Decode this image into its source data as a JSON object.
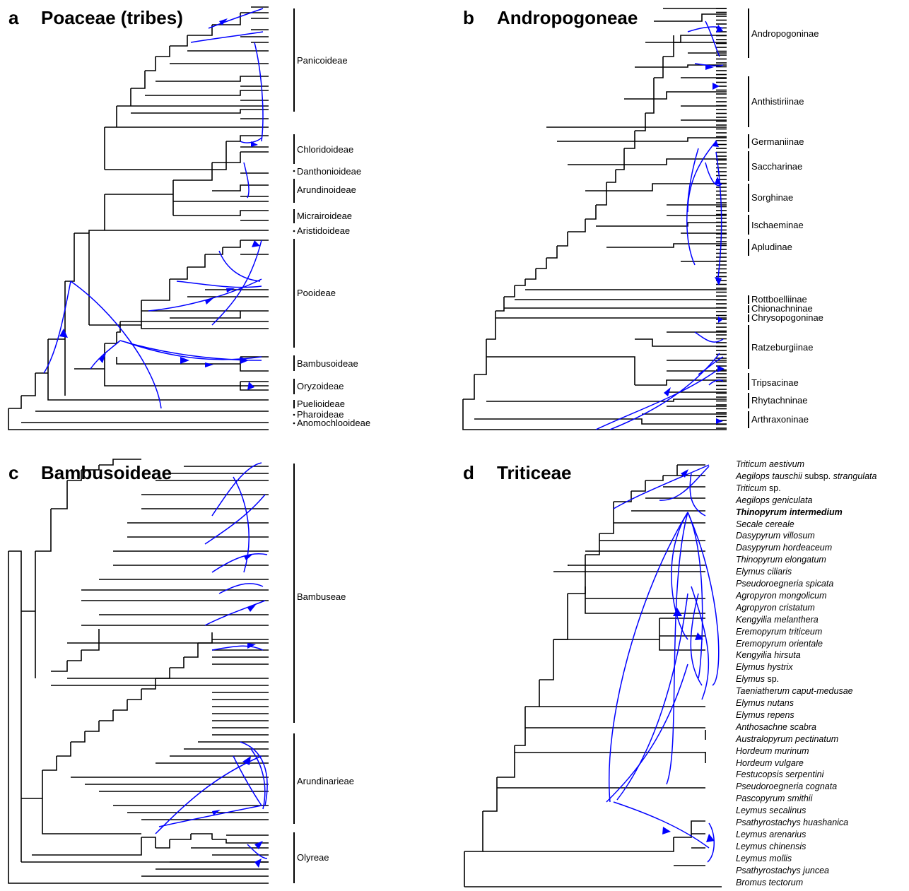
{
  "panels": {
    "a": {
      "label": "a",
      "title": "Poaceae (tribes)",
      "clades": [
        "Panicoideae",
        "Chloridoideae",
        "Danthonioideae",
        "Arundinoideae",
        "Micrairoideae",
        "Aristidoideae",
        "Pooideae",
        "Bambusoideae",
        "Oryzoideae",
        "Puelioideae",
        "Pharoideae",
        "Anomochlooideae"
      ]
    },
    "b": {
      "label": "b",
      "title": "Andropogoneae",
      "clades": [
        "Andropogoninae",
        "Anthistiriinae",
        "Germaniinae",
        "Saccharinae",
        "Sorghinae",
        "Ischaeminae",
        "Apludinae",
        "Rottboelliinae",
        "Chionachninae",
        "Chrysopogoninae",
        "Ratzeburgiinae",
        "Tripsacinae",
        "Rhytachninae",
        "Arthraxoninae"
      ]
    },
    "c": {
      "label": "c",
      "title": "Bambusoideae",
      "clades": [
        "Bambuseae",
        "Arundinarieae",
        "Olyreae"
      ]
    },
    "d": {
      "label": "d",
      "title": "Triticeae",
      "taxa": [
        {
          "name": "Triticum aestivum"
        },
        {
          "name": "Aegilops tauschii",
          "suffix": " subsp. ",
          "suffix2": "strangulata"
        },
        {
          "name": "Triticum",
          "suffix": " sp."
        },
        {
          "name": "Aegilops geniculata"
        },
        {
          "name": "Thinopyrum intermedium",
          "bold": true
        },
        {
          "name": "Secale cereale"
        },
        {
          "name": "Dasypyrum villosum"
        },
        {
          "name": "Dasypyrum hordeaceum"
        },
        {
          "name": "Thinopyrum elongatum"
        },
        {
          "name": "Elymus ciliaris"
        },
        {
          "name": "Pseudoroegneria spicata"
        },
        {
          "name": "Agropyron mongolicum"
        },
        {
          "name": "Agropyron cristatum"
        },
        {
          "name": "Kengyilia melanthera"
        },
        {
          "name": "Eremopyrum triticeum"
        },
        {
          "name": "Eremopyrum orientale"
        },
        {
          "name": "Kengyilia hirsuta"
        },
        {
          "name": "Elymus hystrix"
        },
        {
          "name": "Elymus",
          "suffix": " sp."
        },
        {
          "name": "Taeniatherum caput-medusae"
        },
        {
          "name": "Elymus nutans"
        },
        {
          "name": "Elymus repens"
        },
        {
          "name": "Anthosachne scabra"
        },
        {
          "name": "Australopyrum pectinatum"
        },
        {
          "name": "Hordeum murinum"
        },
        {
          "name": "Hordeum vulgare"
        },
        {
          "name": "Festucopsis serpentini"
        },
        {
          "name": "Pseudoroegneria cognata"
        },
        {
          "name": "Pascopyrum smithii"
        },
        {
          "name": "Leymus secalinus"
        },
        {
          "name": "Psathyrostachys huashanica"
        },
        {
          "name": "Leymus arenarius"
        },
        {
          "name": "Leymus chinensis"
        },
        {
          "name": "Leymus mollis"
        },
        {
          "name": "Psathyrostachys juncea"
        },
        {
          "name": "Bromus tectorum"
        }
      ]
    }
  },
  "colors": {
    "tree": "#000000",
    "hybridization_arrow": "#0000ff",
    "background": "#ffffff"
  }
}
